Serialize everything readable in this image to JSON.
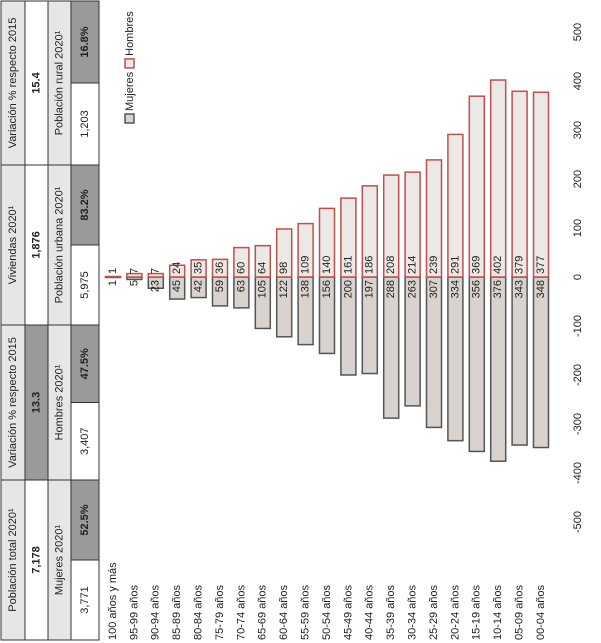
{
  "table": {
    "rows": [
      [
        "Población total 2020¹",
        "Variación % respecto 2015",
        "Viviendas 2020¹",
        "Variación % respecto 2015"
      ],
      [
        "7,178",
        "13.3",
        "1,876",
        "15.4"
      ],
      [
        "Mujeres 2020¹",
        "Hombres 2020¹",
        "Población urbana 2020¹",
        "Población rural 2020¹"
      ],
      [
        [
          "3,771",
          "52.5%"
        ],
        [
          "3,407",
          "47.5%"
        ],
        [
          "5,975",
          "83.2%"
        ],
        [
          "1,203",
          "16.8%"
        ]
      ]
    ]
  },
  "chart_data": {
    "type": "pyramid",
    "categories": [
      "100 años y más",
      "95-99 años",
      "90-94 años",
      "85-89 años",
      "80-84 años",
      "75-79 años",
      "70-74 años",
      "65-69 años",
      "60-64 años",
      "55-59 años",
      "50-54 años",
      "45-49 años",
      "40-44 años",
      "35-39 años",
      "30-34 años",
      "25-29 años",
      "20-24 años",
      "15-19 años",
      "10-14 años",
      "05-09 años",
      "00-04 años"
    ],
    "series": [
      {
        "name": "Mujeres",
        "color": "#555555",
        "values": [
          -1,
          -5,
          -23,
          -45,
          -42,
          -59,
          -63,
          -105,
          -122,
          -138,
          -156,
          -200,
          -197,
          -288,
          -263,
          -307,
          -334,
          -356,
          -376,
          -343,
          -348
        ],
        "value_labels": [
          "1",
          "5",
          "23",
          "45",
          "42",
          "59",
          "63",
          "105",
          "122",
          "138",
          "156",
          "200",
          "197",
          "288",
          "263",
          "307",
          "334",
          "356",
          "376",
          "343",
          "348"
        ]
      },
      {
        "name": "Hombres",
        "color": "#c0504d",
        "values": [
          1,
          7,
          7,
          24,
          35,
          36,
          60,
          64,
          98,
          109,
          140,
          161,
          186,
          208,
          214,
          239,
          291,
          369,
          402,
          379,
          377
        ]
      }
    ],
    "xlim": [
      -500,
      500
    ],
    "xticks": [
      -500,
      -400,
      -300,
      -200,
      -100,
      0,
      100,
      200,
      300,
      400,
      500
    ]
  }
}
